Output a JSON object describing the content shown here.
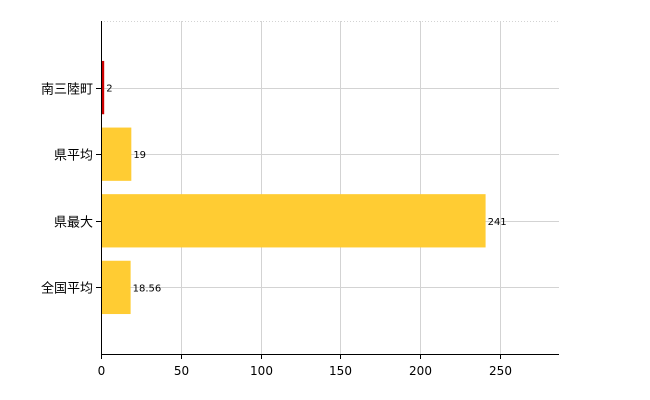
{
  "chart_data": {
    "type": "bar",
    "orientation": "horizontal",
    "categories": [
      "南三陸町",
      "県平均",
      "県最大",
      "全国平均"
    ],
    "values": [
      2,
      19,
      241,
      18.56
    ],
    "value_labels": [
      "2",
      "19",
      "241",
      "18.56"
    ],
    "bar_colors": [
      "#CC0000",
      "#FFCC33",
      "#FFCC33",
      "#FFCC33"
    ],
    "xlim": [
      0,
      287
    ],
    "xticks": [
      0,
      50,
      100,
      150,
      200,
      250
    ],
    "grid": true,
    "grid_color": "#D3D3D3",
    "axis_color": "#000000"
  }
}
